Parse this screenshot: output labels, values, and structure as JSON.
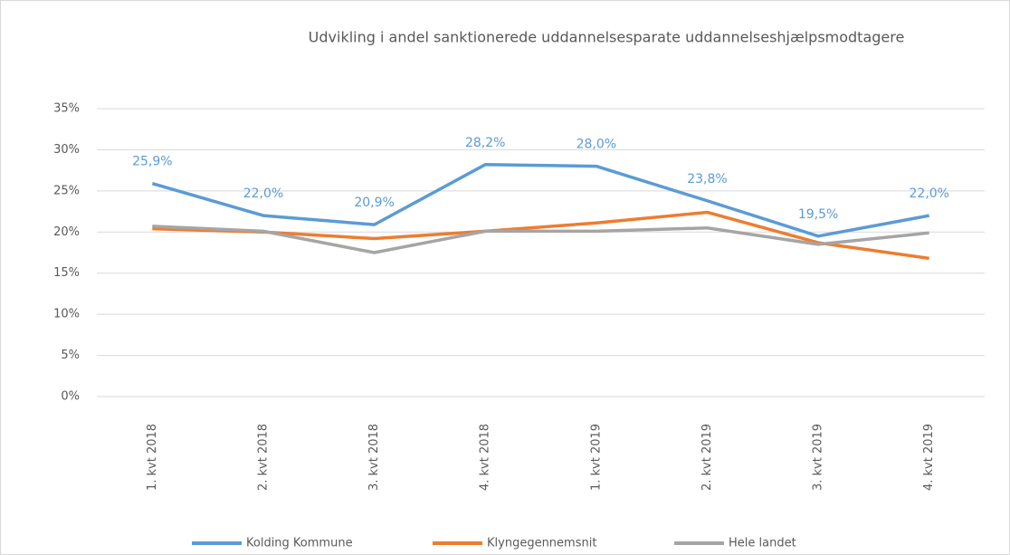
{
  "chart_data": {
    "type": "line",
    "title": "Udvikling i andel sanktionerede uddannelsesparate uddannelseshjælpsmodtagere",
    "categories": [
      "1. kvt 2018",
      "2. kvt 2018",
      "3. kvt 2018",
      "4. kvt 2018",
      "1. kvt 2019",
      "2. kvt 2019",
      "3. kvt 2019",
      "4. kvt 2019"
    ],
    "series": [
      {
        "name": "Kolding Kommune",
        "color": "#5b9bd5",
        "values": [
          25.9,
          22.0,
          20.9,
          28.2,
          28.0,
          23.8,
          19.5,
          22.0
        ],
        "value_labels": [
          "25,9%",
          "22,0%",
          "20,9%",
          "28,2%",
          "28,0%",
          "23,8%",
          "19,5%",
          "22,0%"
        ]
      },
      {
        "name": "Klyngegennemsnit",
        "color": "#ed7d31",
        "values": [
          20.4,
          20.0,
          19.2,
          20.1,
          21.1,
          22.4,
          18.7,
          16.8
        ]
      },
      {
        "name": "Hele landet",
        "color": "#a5a5a5",
        "values": [
          20.7,
          20.1,
          17.5,
          20.1,
          20.1,
          20.5,
          18.5,
          19.9
        ]
      }
    ],
    "ylim": [
      0,
      35
    ],
    "yticks": [
      {
        "value": 0,
        "label": "0%"
      },
      {
        "value": 5,
        "label": "5%"
      },
      {
        "value": 10,
        "label": "10%"
      },
      {
        "value": 15,
        "label": "15%"
      },
      {
        "value": 20,
        "label": "20%"
      },
      {
        "value": 25,
        "label": "25%"
      },
      {
        "value": 30,
        "label": "30%"
      },
      {
        "value": 35,
        "label": "35%"
      }
    ],
    "grid": true,
    "legend": "bottom"
  }
}
